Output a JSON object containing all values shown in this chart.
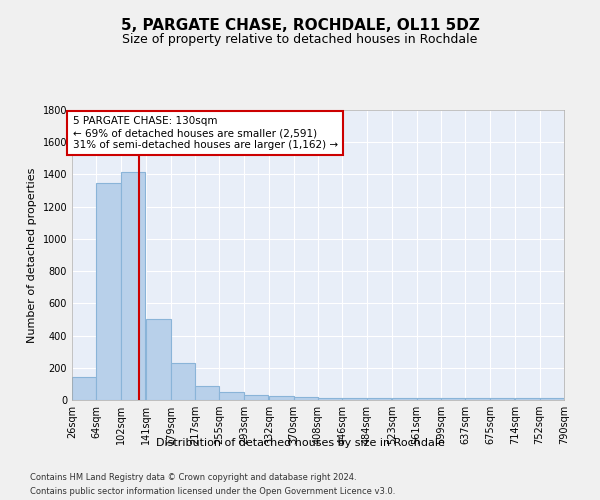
{
  "title": "5, PARGATE CHASE, ROCHDALE, OL11 5DZ",
  "subtitle": "Size of property relative to detached houses in Rochdale",
  "xlabel": "Distribution of detached houses by size in Rochdale",
  "ylabel": "Number of detached properties",
  "footnote1": "Contains HM Land Registry data © Crown copyright and database right 2024.",
  "footnote2": "Contains public sector information licensed under the Open Government Licence v3.0.",
  "bar_edges": [
    26,
    64,
    102,
    141,
    179,
    217,
    255,
    293,
    332,
    370,
    408,
    446,
    484,
    523,
    561,
    599,
    637,
    675,
    714,
    752,
    790
  ],
  "bar_heights": [
    140,
    1350,
    1415,
    500,
    230,
    85,
    50,
    30,
    25,
    20,
    15,
    15,
    15,
    15,
    15,
    10,
    10,
    10,
    10,
    10
  ],
  "bar_color": "#b8d0ea",
  "bar_edge_color": "#8ab4d8",
  "bg_color": "#e8eef8",
  "fig_bg_color": "#f0f0f0",
  "grid_color": "#ffffff",
  "property_line_x": 130,
  "property_line_color": "#cc0000",
  "annotation_text": "5 PARGATE CHASE: 130sqm\n← 69% of detached houses are smaller (2,591)\n31% of semi-detached houses are larger (1,162) →",
  "annotation_box_color": "#cc0000",
  "annotation_bg": "#ffffff",
  "ylim": [
    0,
    1800
  ],
  "yticks": [
    0,
    200,
    400,
    600,
    800,
    1000,
    1200,
    1400,
    1600,
    1800
  ],
  "title_fontsize": 11,
  "subtitle_fontsize": 9,
  "ylabel_fontsize": 8,
  "xlabel_fontsize": 8,
  "tick_fontsize": 7,
  "footnote_fontsize": 6,
  "annotation_fontsize": 7.5
}
